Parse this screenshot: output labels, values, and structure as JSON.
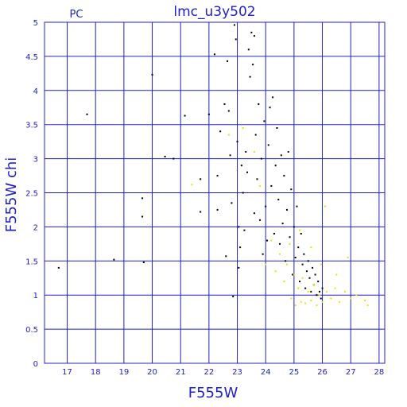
{
  "chart_data": {
    "type": "scatter",
    "title": "lmc_u3y502",
    "corner_label": "PC",
    "xlabel": "F555W",
    "ylabel": "F555W chi",
    "xlim": [
      16.2,
      28.2
    ],
    "ylim": [
      0,
      5
    ],
    "grid": true,
    "x_ticks": [
      "17",
      "18",
      "19",
      "20",
      "21",
      "22",
      "23",
      "24",
      "25",
      "26",
      "27",
      "28"
    ],
    "y_ticks": [
      "0",
      "0.5",
      "1",
      "1.5",
      "2",
      "2.5",
      "3",
      "3.5",
      "4",
      "4.5",
      "5"
    ],
    "colors": {
      "axis": "#2020c8",
      "grid": "#2020c8",
      "series_black": "#000000",
      "series_yellow": "#e6e600"
    },
    "series": [
      {
        "color": "#000000",
        "points": [
          [
            16.7,
            1.4
          ],
          [
            17.7,
            3.65
          ],
          [
            18.65,
            1.52
          ],
          [
            19.65,
            2.42
          ],
          [
            19.65,
            2.15
          ],
          [
            19.7,
            1.48
          ],
          [
            20.0,
            4.23
          ],
          [
            20.45,
            3.03
          ],
          [
            20.75,
            3.0
          ],
          [
            21.15,
            3.63
          ],
          [
            21.7,
            2.7
          ],
          [
            21.7,
            2.22
          ],
          [
            22.0,
            3.65
          ],
          [
            22.2,
            4.53
          ],
          [
            22.3,
            2.75
          ],
          [
            22.3,
            2.25
          ],
          [
            22.4,
            3.4
          ],
          [
            22.55,
            3.8
          ],
          [
            22.6,
            1.57
          ],
          [
            22.65,
            4.43
          ],
          [
            22.7,
            3.7
          ],
          [
            22.75,
            3.05
          ],
          [
            22.8,
            2.35
          ],
          [
            22.85,
            0.98
          ],
          [
            22.9,
            4.96
          ],
          [
            22.95,
            4.75
          ],
          [
            23.0,
            3.25
          ],
          [
            23.05,
            1.4
          ],
          [
            23.05,
            2.0
          ],
          [
            23.1,
            1.7
          ],
          [
            23.15,
            2.9
          ],
          [
            23.2,
            2.5
          ],
          [
            23.25,
            1.95
          ],
          [
            23.3,
            3.1
          ],
          [
            23.35,
            2.8
          ],
          [
            23.4,
            4.6
          ],
          [
            23.45,
            4.2
          ],
          [
            23.5,
            4.85
          ],
          [
            23.55,
            4.38
          ],
          [
            23.6,
            4.8
          ],
          [
            23.6,
            2.2
          ],
          [
            23.65,
            3.35
          ],
          [
            23.7,
            2.7
          ],
          [
            23.75,
            3.8
          ],
          [
            23.8,
            2.1
          ],
          [
            23.85,
            3.0
          ],
          [
            23.9,
            1.6
          ],
          [
            23.95,
            3.55
          ],
          [
            24.0,
            2.3
          ],
          [
            24.05,
            1.8
          ],
          [
            24.1,
            3.2
          ],
          [
            24.15,
            3.75
          ],
          [
            24.2,
            2.6
          ],
          [
            24.25,
            3.9
          ],
          [
            24.3,
            1.9
          ],
          [
            24.35,
            2.9
          ],
          [
            24.4,
            3.45
          ],
          [
            24.45,
            2.4
          ],
          [
            24.5,
            1.75
          ],
          [
            24.55,
            3.05
          ],
          [
            24.6,
            2.05
          ],
          [
            24.65,
            2.75
          ],
          [
            24.7,
            1.5
          ],
          [
            24.75,
            2.25
          ],
          [
            24.8,
            3.1
          ],
          [
            24.85,
            1.85
          ],
          [
            24.9,
            2.55
          ],
          [
            24.95,
            1.3
          ],
          [
            25.0,
            2.0
          ],
          [
            25.05,
            1.55
          ],
          [
            25.1,
            2.3
          ],
          [
            25.15,
            1.7
          ],
          [
            25.2,
            1.2
          ],
          [
            25.25,
            1.9
          ],
          [
            25.3,
            1.45
          ],
          [
            25.35,
            1.6
          ],
          [
            25.4,
            1.1
          ],
          [
            25.45,
            1.35
          ],
          [
            25.5,
            1.5
          ],
          [
            25.55,
            1.25
          ],
          [
            25.6,
            1.05
          ],
          [
            25.65,
            1.4
          ],
          [
            25.7,
            1.15
          ],
          [
            25.75,
            1.3
          ],
          [
            25.8,
            1.0
          ],
          [
            25.85,
            1.2
          ],
          [
            25.9,
            1.05
          ],
          [
            25.95,
            0.95
          ],
          [
            26.0,
            1.1
          ]
        ]
      },
      {
        "color": "#e6e600",
        "points": [
          [
            21.4,
            2.62
          ],
          [
            22.7,
            3.35
          ],
          [
            23.2,
            3.45
          ],
          [
            23.6,
            3.1
          ],
          [
            23.8,
            2.6
          ],
          [
            24.0,
            1.45
          ],
          [
            24.2,
            1.8
          ],
          [
            24.35,
            1.35
          ],
          [
            24.5,
            1.6
          ],
          [
            24.65,
            1.2
          ],
          [
            24.75,
            1.45
          ],
          [
            24.85,
            1.75
          ],
          [
            24.9,
            0.95
          ],
          [
            25.0,
            1.3
          ],
          [
            25.05,
            0.85
          ],
          [
            25.15,
            1.1
          ],
          [
            25.25,
            0.9
          ],
          [
            25.3,
            1.25
          ],
          [
            25.4,
            0.88
          ],
          [
            25.5,
            1.05
          ],
          [
            25.6,
            0.92
          ],
          [
            25.7,
            1.15
          ],
          [
            25.8,
            0.85
          ],
          [
            25.9,
            1.0
          ],
          [
            26.0,
            0.9
          ],
          [
            26.1,
            2.3
          ],
          [
            26.15,
            1.05
          ],
          [
            26.3,
            0.95
          ],
          [
            26.45,
            1.1
          ],
          [
            26.6,
            0.9
          ],
          [
            26.8,
            1.05
          ],
          [
            27.0,
            0.95
          ],
          [
            27.2,
            1.0
          ],
          [
            27.5,
            0.92
          ],
          [
            27.6,
            0.85
          ],
          [
            26.9,
            1.55
          ],
          [
            26.5,
            1.3
          ],
          [
            25.95,
            1.45
          ],
          [
            25.6,
            1.7
          ],
          [
            25.2,
            1.95
          ]
        ]
      }
    ]
  }
}
